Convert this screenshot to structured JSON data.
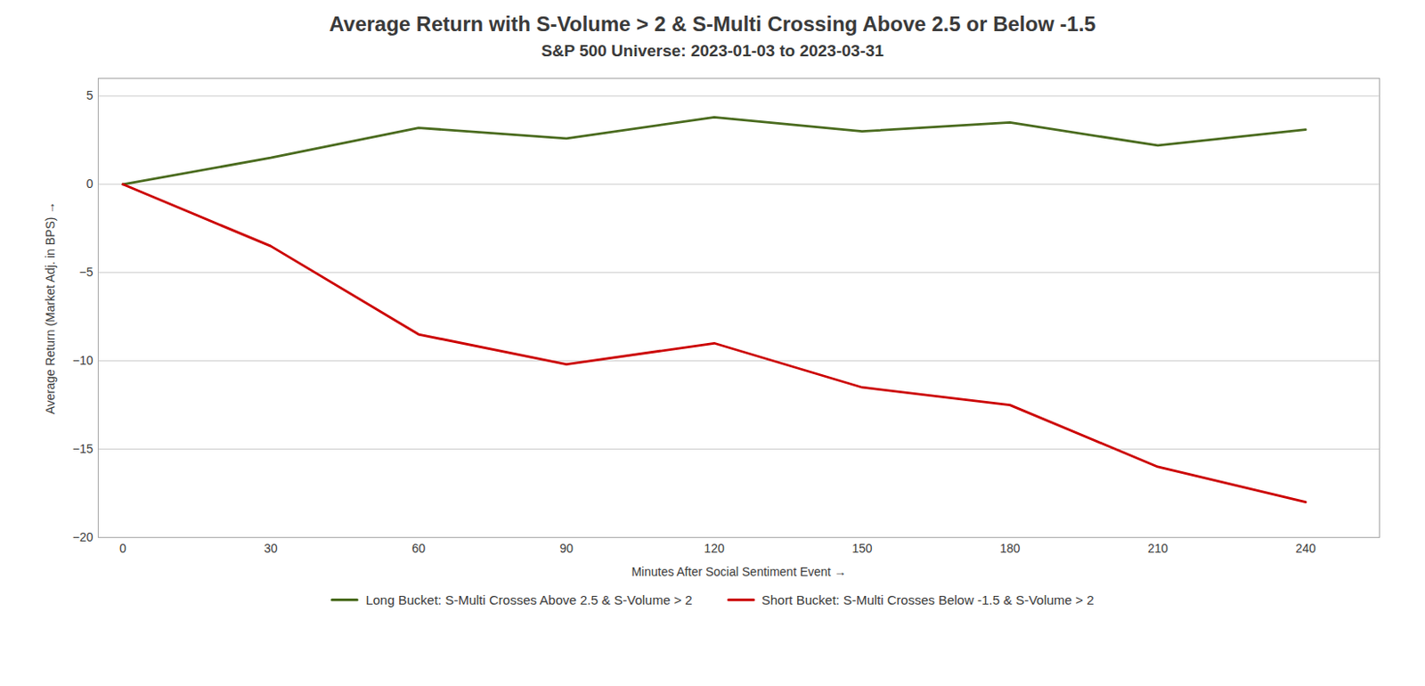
{
  "chart_data": {
    "type": "line",
    "title": "Average Return with S-Volume > 2 & S-Multi Crossing Above 2.5 or Below -1.5",
    "subtitle": "S&P 500 Universe: 2023-01-03 to 2023-03-31",
    "xlabel": "Minutes After Social Sentiment Event",
    "ylabel": "Average Return (Market Adj. in BPS)",
    "x": [
      0,
      30,
      60,
      90,
      120,
      150,
      180,
      210,
      240
    ],
    "series": [
      {
        "name": "Long Bucket: S-Multi Crosses Above 2.5 & S-Volume > 2",
        "color": "#4a6b1e",
        "values": [
          0,
          1.5,
          3.2,
          2.6,
          3.8,
          3.0,
          3.5,
          2.2,
          3.1
        ]
      },
      {
        "name": "Short Bucket: S-Multi Crosses Below -1.5 & S-Volume > 2",
        "color": "#cc0000",
        "values": [
          0,
          -3.5,
          -8.5,
          -10.2,
          -9.0,
          -11.5,
          -12.5,
          -16.0,
          -18.0
        ]
      }
    ],
    "xlim": [
      -5,
      255
    ],
    "xticks": [
      0,
      30,
      60,
      90,
      120,
      150,
      180,
      210,
      240
    ],
    "ylim": [
      -20,
      6
    ],
    "yticks": [
      -20,
      -15,
      -10,
      -5,
      0,
      5
    ],
    "grid": true,
    "legend": "bottom"
  }
}
